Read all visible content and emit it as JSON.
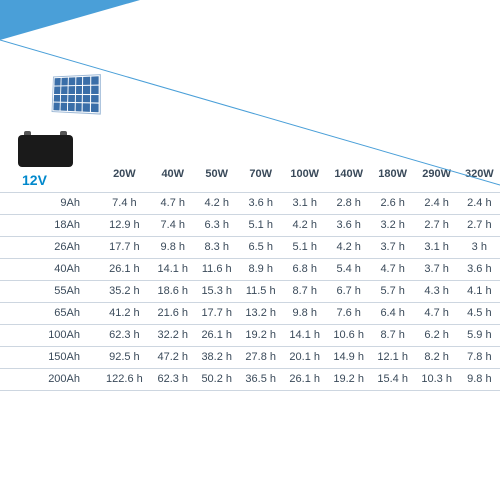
{
  "type": "table",
  "voltage_label": "12V",
  "background_color": "#ffffff",
  "border_color": "#cdd6e0",
  "text_color": "#3a4a5a",
  "accent_color": "#0088cc",
  "wedge_color": "#4a9fd8",
  "font_size_header": 11,
  "font_size_cell": 11,
  "columns": [
    "",
    "20W",
    "40W",
    "50W",
    "70W",
    "100W",
    "140W",
    "180W",
    "290W",
    "320W"
  ],
  "col_widths_pct": [
    19.6,
    8.93,
    8.93,
    8.93,
    8.93,
    8.93,
    8.93,
    8.93,
    8.93,
    8.93
  ],
  "rows": [
    [
      "9Ah",
      "7.4 h",
      "4.7 h",
      "4.2 h",
      "3.6 h",
      "3.1 h",
      "2.8 h",
      "2.6 h",
      "2.4 h",
      "2.4 h"
    ],
    [
      "18Ah",
      "12.9 h",
      "7.4 h",
      "6.3 h",
      "5.1 h",
      "4.2 h",
      "3.6 h",
      "3.2 h",
      "2.7 h",
      "2.7 h"
    ],
    [
      "26Ah",
      "17.7 h",
      "9.8 h",
      "8.3 h",
      "6.5 h",
      "5.1 h",
      "4.2 h",
      "3.7 h",
      "3.1 h",
      "3 h"
    ],
    [
      "40Ah",
      "26.1 h",
      "14.1 h",
      "11.6 h",
      "8.9 h",
      "6.8 h",
      "5.4 h",
      "4.7 h",
      "3.7 h",
      "3.6 h"
    ],
    [
      "55Ah",
      "35.2 h",
      "18.6 h",
      "15.3 h",
      "11.5 h",
      "8.7 h",
      "6.7 h",
      "5.7 h",
      "4.3 h",
      "4.1 h"
    ],
    [
      "65Ah",
      "41.2 h",
      "21.6 h",
      "17.7 h",
      "13.2 h",
      "9.8 h",
      "7.6 h",
      "6.4 h",
      "4.7 h",
      "4.5 h"
    ],
    [
      "100Ah",
      "62.3 h",
      "32.2 h",
      "26.1 h",
      "19.2 h",
      "14.1 h",
      "10.6 h",
      "8.7 h",
      "6.2 h",
      "5.9 h"
    ],
    [
      "150Ah",
      "92.5 h",
      "47.2 h",
      "38.2 h",
      "27.8 h",
      "20.1 h",
      "14.9 h",
      "12.1 h",
      "8.2 h",
      "7.8 h"
    ],
    [
      "200Ah",
      "122.6 h",
      "62.3 h",
      "50.2 h",
      "36.5 h",
      "26.1 h",
      "19.2 h",
      "15.4 h",
      "10.3 h",
      "9.8 h"
    ]
  ]
}
